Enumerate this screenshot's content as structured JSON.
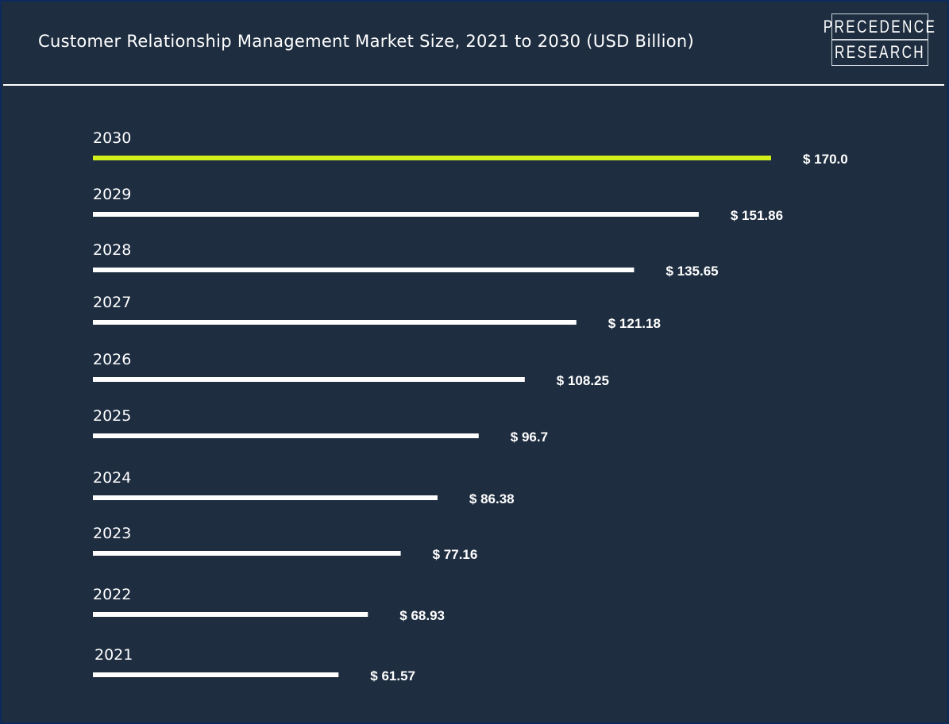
{
  "header": {
    "title": "Customer Relationship Management Market Size, 2021 to 2030 (USD Billion)",
    "logo_line1": "PRECEDENCE",
    "logo_line2": "RESEARCH"
  },
  "colors": {
    "background": "#1e2d40",
    "border": "#0d2a5c",
    "bar_default": "#ffffff",
    "bar_highlight": "#d4f01a",
    "text": "#ffffff"
  },
  "chart_data": {
    "type": "bar",
    "orientation": "horizontal",
    "title": "Customer Relationship Management Market Size, 2021 to 2030 (USD Billion)",
    "xlabel": "",
    "ylabel": "",
    "unit": "USD Billion",
    "value_prefix": "$ ",
    "categories": [
      "2030",
      "2029",
      "2028",
      "2027",
      "2026",
      "2025",
      "2024",
      "2023",
      "2022",
      "2021"
    ],
    "values": [
      170.0,
      151.86,
      135.65,
      121.18,
      108.25,
      96.7,
      86.38,
      77.16,
      68.93,
      61.57
    ],
    "value_labels": [
      "$ 170.0",
      "$ 151.86",
      "$ 135.65",
      "$ 121.18",
      "$ 108.25",
      "$ 96.7",
      "$ 86.38",
      "$ 77.16",
      "$ 68.93",
      "$ 61.57"
    ],
    "highlight_category": "2030",
    "xlim": [
      0,
      170
    ],
    "grid": false,
    "legend": "none"
  }
}
